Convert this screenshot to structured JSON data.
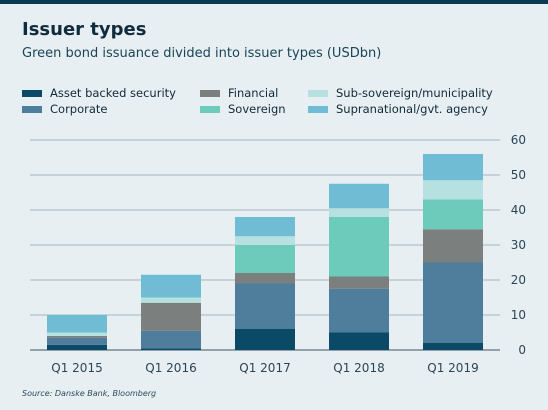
{
  "title": "Issuer types",
  "subtitle": "Green bond issuance divided into issuer types (USDbn)",
  "source": "Source: Danske Bank, Bloomberg",
  "chart_data": {
    "type": "bar",
    "stacked": true,
    "categories": [
      "Q1 2015",
      "Q1 2016",
      "Q1 2017",
      "Q1 2018",
      "Q1 2019"
    ],
    "series": [
      {
        "name": "Asset backed security",
        "color": "#0b4a66",
        "values": [
          1.5,
          0.5,
          6,
          5,
          2
        ]
      },
      {
        "name": "Corporate",
        "color": "#4f7d9c",
        "values": [
          2,
          5,
          13,
          12.5,
          23
        ]
      },
      {
        "name": "Financial",
        "color": "#7b7f7e",
        "values": [
          0.5,
          8,
          3,
          3.5,
          9.5
        ]
      },
      {
        "name": "Sovereign",
        "color": "#6ccbbb",
        "values": [
          0,
          0,
          8,
          17,
          8.5
        ]
      },
      {
        "name": "Sub-sovereign/municipality",
        "color": "#b7e0e1",
        "values": [
          1,
          1.5,
          2.5,
          2.5,
          5.5
        ]
      },
      {
        "name": "Supranational/gvt. agency",
        "color": "#71bcd5",
        "values": [
          5,
          6.5,
          5.5,
          7,
          7.5
        ]
      }
    ],
    "ylim": [
      0,
      60
    ],
    "yticks": [
      0,
      10,
      20,
      30,
      40,
      50,
      60
    ],
    "ytick_side": "right",
    "grid": "horizontal",
    "legend_position": "top-left",
    "xlabel": "",
    "ylabel": ""
  }
}
